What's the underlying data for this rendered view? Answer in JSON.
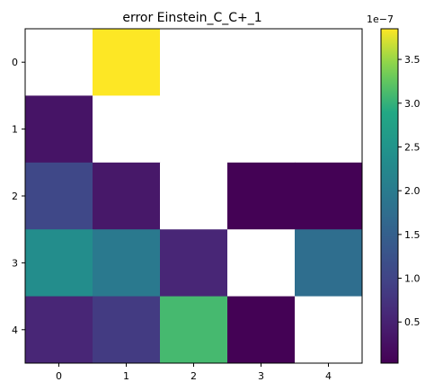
{
  "chart_data": {
    "type": "heatmap",
    "title": "error Einstein_C_C+_1",
    "xlabel": "",
    "ylabel": "",
    "x_categories": [
      "0",
      "1",
      "2",
      "3",
      "4"
    ],
    "y_categories": [
      "0",
      "1",
      "2",
      "3",
      "4"
    ],
    "scale_multiplier": "1e−7",
    "values": [
      [
        null,
        3.85,
        null,
        null,
        null
      ],
      [
        0.3,
        null,
        null,
        null,
        null
      ],
      [
        1.05,
        0.35,
        null,
        0.05,
        0.05
      ],
      [
        2.35,
        1.95,
        0.55,
        null,
        1.75
      ],
      [
        0.55,
        0.85,
        3.1,
        0.05,
        null
      ]
    ],
    "colorbar": {
      "colormap": "viridis",
      "min": 0.03,
      "max": 3.85,
      "ticks": [
        0.5,
        1.0,
        1.5,
        2.0,
        2.5,
        3.0,
        3.5
      ],
      "tick_labels": [
        "0.5",
        "1.0",
        "1.5",
        "2.0",
        "2.5",
        "3.0",
        "3.5"
      ]
    },
    "missing_cell_color": "#ffffff"
  }
}
